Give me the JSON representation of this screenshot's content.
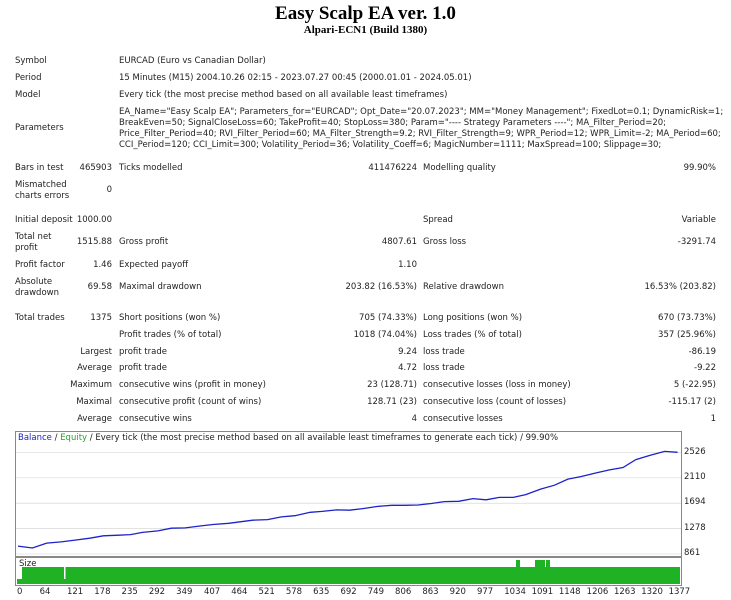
{
  "report": {
    "title": "Easy Scalp EA ver. 1.0",
    "subtitle": "Alpari-ECN1 (Build 1380)"
  },
  "info": {
    "symbol_label": "Symbol",
    "symbol_value": "EURCAD (Euro vs Canadian Dollar)",
    "period_label": "Period",
    "period_value": "15 Minutes (M15) 2004.10.26 02:15 - 2023.07.27 00:45 (2000.01.01 - 2024.05.01)",
    "model_label": "Model",
    "model_value": "Every tick (the most precise method based on all available least timeframes)",
    "params_label": "Parameters",
    "params_lines": [
      "EA_Name=\"Easy Scalp EA\"; Parameters_for=\"EURCAD\"; Opt_Date=\"20.07.2023\"; MM=\"Money Management\"; FixedLot=0.1; DynamicRisk=1;",
      "BreakEven=50; SignalCloseLoss=60; TakeProfit=40; StopLoss=380; Param=\"---- Strategy Parameters ----\"; MA_Filter_Period=20;",
      "Price_Filter_Period=40; RVI_Filter_Period=60; MA_Filter_Strength=9.2; RVI_Filter_Strength=9; WPR_Period=12; WPR_Limit=-2; MA_Period=60;",
      "CCI_Period=120; CCI_Limit=300; Volatility_Period=36; Volatility_Coeff=6; MagicNumber=1111; MaxSpread=100; Slippage=30;"
    ]
  },
  "stats": {
    "bars_label": "Bars in test",
    "bars_value": "465903",
    "ticks_label": "Ticks modelled",
    "ticks_value": "411476224",
    "mq_label": "Modelling quality",
    "mq_value": "99.90%",
    "mismatch_label_1": "Mismatched",
    "mismatch_label_2": "charts errors",
    "mismatch_value": "0",
    "deposit_label": "Initial deposit",
    "deposit_value": "1000.00",
    "spread_label": "Spread",
    "spread_value": "Variable",
    "netprofit_label_1": "Total net",
    "netprofit_label_2": "profit",
    "netprofit_value": "1515.88",
    "grossprofit_label": "Gross profit",
    "grossprofit_value": "4807.61",
    "grossloss_label": "Gross loss",
    "grossloss_value": "-3291.74",
    "pf_label": "Profit factor",
    "pf_value": "1.46",
    "ep_label": "Expected payoff",
    "ep_value": "1.10",
    "absdd_label_1": "Absolute",
    "absdd_label_2": "drawdown",
    "absdd_value": "69.58",
    "maxdd_label": "Maximal drawdown",
    "maxdd_value": "203.82 (16.53%)",
    "reldd_label": "Relative drawdown",
    "reldd_value": "16.53% (203.82)",
    "trades_label": "Total trades",
    "trades_value": "1375",
    "short_label": "Short positions (won %)",
    "short_value": "705 (74.33%)",
    "long_label": "Long positions (won %)",
    "long_value": "670 (73.73%)",
    "pt_label": "Profit trades (% of total)",
    "pt_value": "1018 (74.04%)",
    "lt_label": "Loss trades (% of total)",
    "lt_value": "357 (25.96%)",
    "largest_label": "Largest",
    "largest_profit_label": "profit trade",
    "largest_profit_value": "9.24",
    "largest_loss_label": "loss trade",
    "largest_loss_value": "-86.19",
    "average_label": "Average",
    "average_profit_label": "profit trade",
    "average_profit_value": "4.72",
    "average_loss_label": "loss trade",
    "average_loss_value": "-9.22",
    "maximum_label": "Maximum",
    "max_wins_label": "consecutive wins (profit in money)",
    "max_wins_value": "23 (128.71)",
    "max_losses_label": "consecutive losses (loss in money)",
    "max_losses_value": "5 (-22.95)",
    "maximal_label": "Maximal",
    "maximal_profit_label": "consecutive profit (count of wins)",
    "maximal_profit_value": "128.71 (23)",
    "maximal_loss_label": "consecutive loss (count of losses)",
    "maximal_loss_value": "-115.17 (2)",
    "avg2_label": "Average",
    "avg_wins_label": "consecutive wins",
    "avg_wins_value": "4",
    "avg_losses_label": "consecutive losses",
    "avg_losses_value": "1"
  },
  "legend": {
    "balance": "Balance",
    "sep1": " / ",
    "equity": "Equity",
    "rest": " / Every tick (the most precise method based on all available least timeframes to generate each tick) / 99.90%"
  },
  "size_label": "Size",
  "colors": {
    "balance_line": "#1e22c9",
    "size_bar": "#1fb224",
    "grid": "#d0d0d0"
  },
  "chart_data": {
    "type": "line",
    "title": "",
    "xlabel": "",
    "ylabel": "",
    "y_ticks": [
      "2526",
      "2110",
      "1694",
      "1278",
      "861"
    ],
    "x_ticks": [
      "0",
      "64",
      "121",
      "178",
      "235",
      "292",
      "349",
      "407",
      "464",
      "521",
      "578",
      "635",
      "692",
      "749",
      "806",
      "863",
      "920",
      "977",
      "1034",
      "1091",
      "1148",
      "1206",
      "1263",
      "1320",
      "1377"
    ],
    "xlim": [
      0,
      1380
    ],
    "ylim": [
      861,
      2600
    ],
    "series": [
      {
        "x": [
          0,
          30,
          60,
          90,
          121,
          150,
          178,
          210,
          235,
          260,
          292,
          320,
          349,
          380,
          407,
          440,
          464,
          490,
          521,
          550,
          578,
          610,
          635,
          665,
          692,
          720,
          749,
          780,
          806,
          835,
          863,
          890,
          920,
          950,
          977,
          1005,
          1034,
          1060,
          1091,
          1120,
          1148,
          1175,
          1206,
          1235,
          1263,
          1290,
          1320,
          1350,
          1377
        ],
        "values": [
          990,
          960,
          1040,
          1060,
          1090,
          1120,
          1160,
          1170,
          1180,
          1215,
          1240,
          1285,
          1290,
          1320,
          1345,
          1365,
          1390,
          1415,
          1425,
          1470,
          1490,
          1545,
          1560,
          1585,
          1580,
          1605,
          1640,
          1660,
          1660,
          1665,
          1690,
          1720,
          1725,
          1770,
          1750,
          1790,
          1790,
          1835,
          1925,
          1990,
          2090,
          2130,
          2190,
          2240,
          2280,
          2410,
          2480,
          2545,
          2530
        ]
      }
    ],
    "size_bars": {
      "values": [
        1,
        1,
        1,
        1,
        1
      ],
      "note_markers": []
    }
  }
}
